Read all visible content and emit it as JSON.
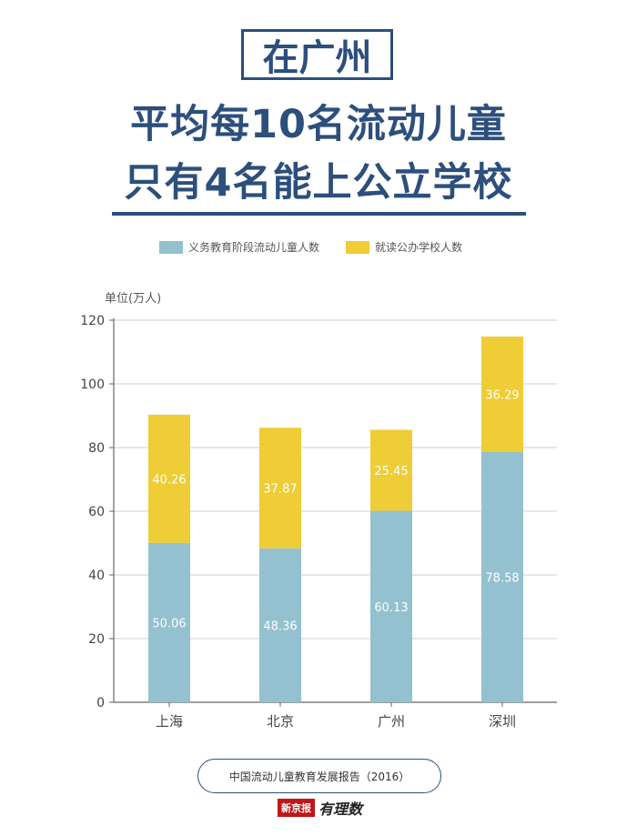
{
  "header": {
    "line1": "在广州",
    "line2": "平均每10名流动儿童",
    "line3": "只有4名能上公立学校"
  },
  "legend": {
    "series1": "义务教育阶段流动儿童人数",
    "series2": "就读公办学校人数"
  },
  "colors": {
    "title": "#2c4f7c",
    "series1": "#93c1cf",
    "series2": "#eecd36"
  },
  "chart_data": {
    "type": "bar",
    "stacked": true,
    "ylabel": "单位(万人)",
    "ylim": [
      0,
      120
    ],
    "yticks": [
      0,
      20,
      40,
      60,
      80,
      100,
      120
    ],
    "grid": true,
    "categories": [
      "上海",
      "北京",
      "广州",
      "深圳"
    ],
    "series": [
      {
        "name": "义务教育阶段流动儿童人数",
        "values": [
          50.06,
          48.36,
          60.13,
          78.58
        ]
      },
      {
        "name": "就读公办学校人数",
        "values": [
          40.26,
          37.87,
          25.45,
          36.29
        ]
      }
    ]
  },
  "footer": {
    "source": "中国流动儿童教育发展报告（2016）",
    "logo_text": "新京报",
    "logo_script": "有理数"
  }
}
